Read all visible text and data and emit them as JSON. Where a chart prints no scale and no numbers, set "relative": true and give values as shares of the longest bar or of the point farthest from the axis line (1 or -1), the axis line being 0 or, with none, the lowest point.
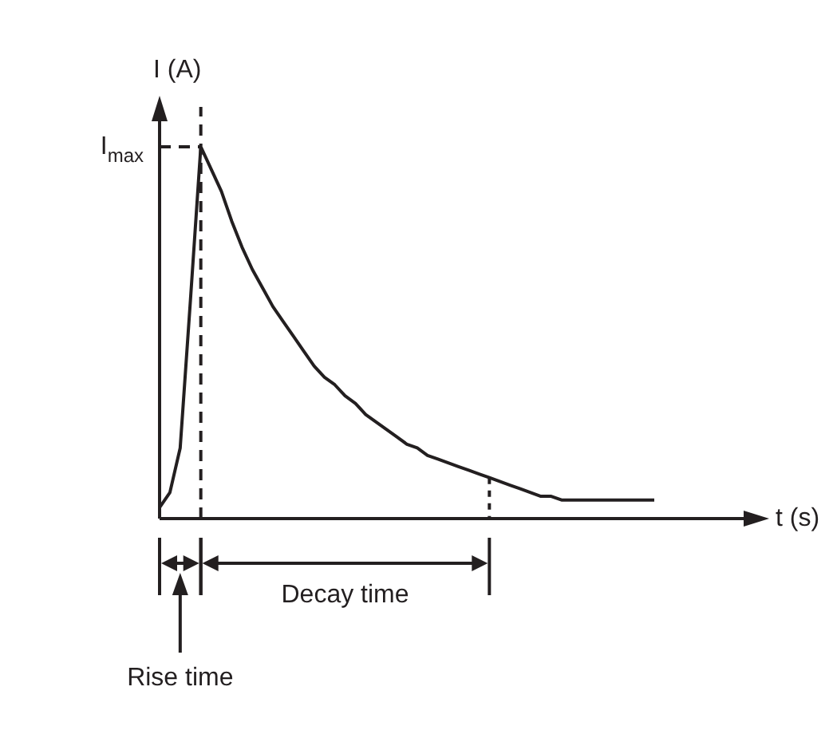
{
  "chart_data": {
    "type": "line",
    "relative": true,
    "xlabel": "t (s)",
    "ylabel": "I (A)",
    "color": "#231f20",
    "marker": "none",
    "line_style": "solid",
    "legend": false,
    "categories": [
      null,
      null,
      null,
      null,
      null,
      null,
      null,
      null,
      null,
      null,
      null,
      null,
      null,
      null,
      null,
      null,
      null,
      null,
      null,
      null,
      null,
      null,
      null,
      null,
      null,
      null,
      null,
      null,
      null,
      null,
      null,
      null,
      null,
      null,
      null,
      null,
      null,
      null,
      null,
      null,
      null,
      null,
      null,
      null,
      null,
      null,
      null,
      null,
      null
    ],
    "values": [
      0.03,
      0.07,
      0.19,
      0.59,
      1,
      0.94,
      0.88,
      0.8,
      0.73,
      0.67,
      0.62,
      0.57,
      0.53,
      0.49,
      0.45,
      0.41,
      0.38,
      0.36,
      0.33,
      0.31,
      0.28,
      0.26,
      0.24,
      0.22,
      0.2,
      0.19,
      0.17,
      0.16,
      0.15,
      0.14,
      0.13,
      0.12,
      0.11,
      0.1,
      0.09,
      0.08,
      0.07,
      0.06,
      0.06,
      0.05,
      0.05,
      0.05,
      0.05,
      0.05,
      0.05,
      0.05,
      0.05,
      0.05,
      0.05
    ],
    "ref_lines": [
      {
        "axis": "y",
        "value": 1,
        "label": "I$_{max}$",
        "line_style": "dashed"
      }
    ],
    "annotations": [
      "Decay time",
      "Rise time"
    ]
  }
}
